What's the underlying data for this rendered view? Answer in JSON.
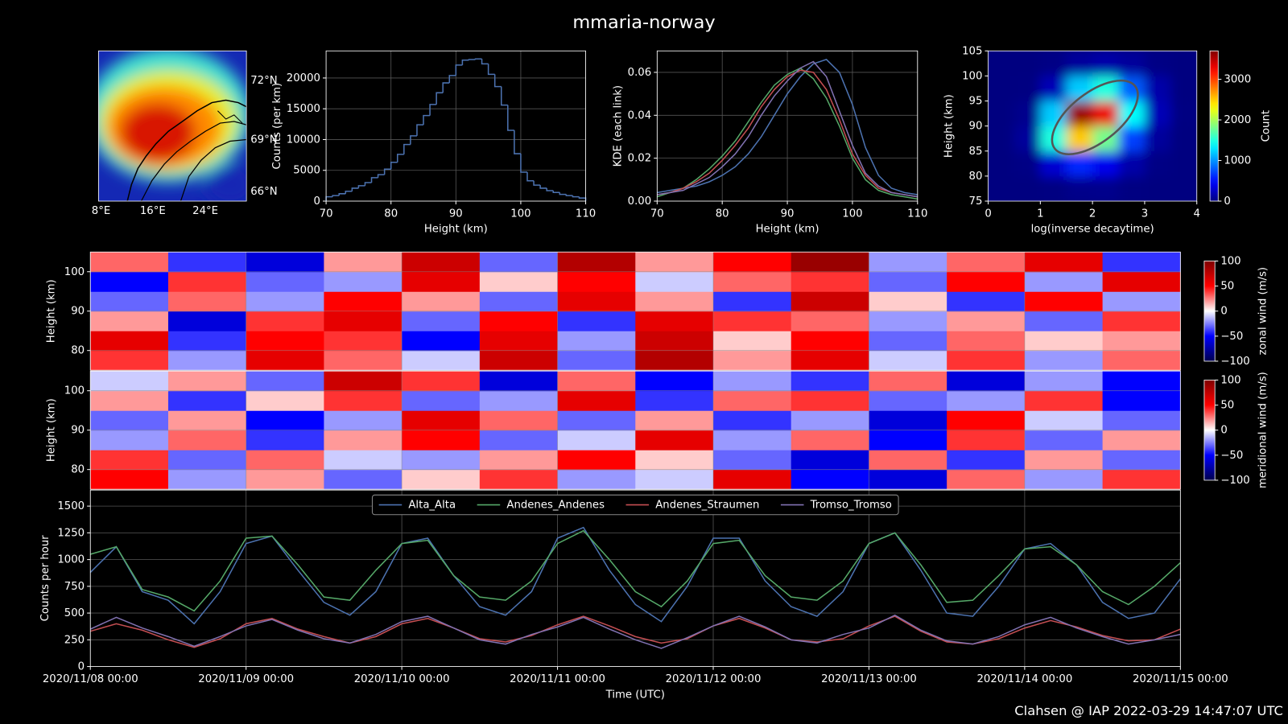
{
  "title": "mmaria-norway",
  "footer": "Clahsen @ IAP 2022-03-29 14:47:07 UTC",
  "chart_data": [
    {
      "type": "map",
      "lat_labels": [
        "72°N",
        "69°N",
        "66°N"
      ],
      "lon_labels": [
        "8°E",
        "16°E",
        "24°E"
      ]
    },
    {
      "type": "histogram",
      "color": "#4c72b0",
      "xlabel": "Height (km)",
      "ylabel": "Counts (per km)",
      "bins": [
        70,
        71,
        72,
        73,
        74,
        75,
        76,
        77,
        78,
        79,
        80,
        81,
        82,
        83,
        84,
        85,
        86,
        87,
        88,
        89,
        90,
        91,
        92,
        93,
        94,
        95,
        96,
        97,
        98,
        99,
        100,
        101,
        102,
        103,
        104,
        105,
        106,
        107,
        108,
        109,
        110
      ],
      "values": [
        700,
        900,
        1200,
        1600,
        2100,
        2500,
        3000,
        3800,
        4300,
        5200,
        6300,
        7600,
        9200,
        10600,
        12400,
        13900,
        15700,
        17600,
        19200,
        20400,
        22100,
        22900,
        23000,
        23100,
        22300,
        20600,
        18600,
        15600,
        11500,
        7700,
        4700,
        3300,
        2600,
        2100,
        1700,
        1400,
        1100,
        900,
        700,
        500
      ],
      "xlim": [
        70,
        110
      ],
      "xticks": [
        70,
        80,
        90,
        100,
        110
      ],
      "ylim": [
        0,
        24400
      ],
      "yticks": [
        0,
        5000,
        10000,
        15000,
        20000
      ],
      "grid": true
    },
    {
      "type": "line",
      "xlabel": "Height (km)",
      "ylabel": "KDE (each link)",
      "x": [
        70,
        72,
        74,
        76,
        78,
        80,
        82,
        84,
        86,
        88,
        90,
        92,
        94,
        96,
        98,
        100,
        102,
        104,
        106,
        108,
        110
      ],
      "series": [
        {
          "color": "#4c72b0",
          "values": [
            0.004,
            0.005,
            0.006,
            0.007,
            0.009,
            0.012,
            0.016,
            0.022,
            0.03,
            0.04,
            0.05,
            0.058,
            0.064,
            0.066,
            0.06,
            0.045,
            0.025,
            0.012,
            0.006,
            0.004,
            0.003
          ]
        },
        {
          "color": "#55a868",
          "values": [
            0.002,
            0.004,
            0.006,
            0.01,
            0.015,
            0.021,
            0.028,
            0.037,
            0.046,
            0.054,
            0.059,
            0.062,
            0.057,
            0.048,
            0.035,
            0.02,
            0.01,
            0.005,
            0.003,
            0.002,
            0.001
          ]
        },
        {
          "color": "#c44e52",
          "values": [
            0.003,
            0.004,
            0.006,
            0.009,
            0.013,
            0.019,
            0.026,
            0.034,
            0.044,
            0.052,
            0.058,
            0.061,
            0.06,
            0.052,
            0.038,
            0.022,
            0.012,
            0.006,
            0.004,
            0.003,
            0.002
          ]
        },
        {
          "color": "#8172b2",
          "values": [
            0.003,
            0.004,
            0.005,
            0.008,
            0.011,
            0.016,
            0.022,
            0.03,
            0.04,
            0.049,
            0.056,
            0.062,
            0.065,
            0.058,
            0.042,
            0.026,
            0.013,
            0.007,
            0.004,
            0.003,
            0.002
          ]
        }
      ],
      "xlim": [
        70,
        110
      ],
      "xticks": [
        70,
        80,
        90,
        100,
        110
      ],
      "ylim": [
        0,
        0.07
      ],
      "yticks": [
        {
          "value": 0,
          "label": "0.00"
        },
        {
          "value": 0.02,
          "label": "0.02"
        },
        {
          "value": 0.04,
          "label": "0.04"
        },
        {
          "value": 0.06,
          "label": "0.06"
        }
      ],
      "grid": true
    },
    {
      "type": "hist2d",
      "xlabel": "log(inverse decaytime)",
      "ylabel": "Height (km)",
      "colormap": "jet",
      "x": [
        0,
        0.5,
        1,
        1.5,
        2,
        2.5,
        3,
        3.5,
        4
      ],
      "y": [
        75,
        80,
        85,
        90,
        95,
        100,
        105
      ],
      "values": [
        [
          0,
          0,
          10,
          40,
          50,
          10,
          0,
          0
        ],
        [
          0,
          20,
          300,
          600,
          400,
          150,
          20,
          0
        ],
        [
          0,
          100,
          1500,
          2500,
          1800,
          700,
          100,
          0
        ],
        [
          0,
          50,
          1200,
          3600,
          3300,
          1400,
          200,
          10
        ],
        [
          0,
          10,
          200,
          1200,
          1500,
          800,
          150,
          0
        ],
        [
          0,
          0,
          20,
          100,
          150,
          100,
          20,
          0
        ]
      ],
      "xlim": [
        0,
        4
      ],
      "xticks": [
        0,
        1,
        2,
        3,
        4
      ],
      "ylim": [
        75,
        105
      ],
      "yticks": [
        75,
        80,
        85,
        90,
        95,
        100,
        105
      ],
      "clim": [
        0,
        3700
      ],
      "cticks": [
        0,
        1000,
        2000,
        3000
      ],
      "clabel": "Count"
    },
    {
      "type": "heatmap",
      "ylabel": "Height (km)",
      "colormap": "seismic",
      "x": [
        "2020/11/08 00:00",
        "2020/11/08 12:00",
        "2020/11/09 00:00",
        "2020/11/09 12:00",
        "2020/11/10 00:00",
        "2020/11/10 12:00",
        "2020/11/11 00:00",
        "2020/11/11 12:00",
        "2020/11/12 00:00",
        "2020/11/12 12:00",
        "2020/11/13 00:00",
        "2020/11/13 12:00",
        "2020/11/14 00:00",
        "2020/11/14 12:00",
        "2020/11/15 00:00"
      ],
      "y": [
        75,
        80,
        85,
        90,
        95,
        100,
        105
      ],
      "values": [
        [
          40,
          -20,
          60,
          30,
          -10,
          70,
          -30,
          80,
          20,
          60,
          -10,
          40,
          -20,
          30
        ],
        [
          60,
          -40,
          50,
          40,
          -50,
          60,
          -20,
          70,
          10,
          50,
          -30,
          30,
          10,
          20
        ],
        [
          20,
          -60,
          40,
          60,
          -30,
          50,
          -40,
          60,
          40,
          30,
          -20,
          20,
          -30,
          40
        ],
        [
          -30,
          30,
          -20,
          50,
          20,
          -30,
          60,
          20,
          -40,
          70,
          10,
          -40,
          50,
          -20
        ],
        [
          -50,
          40,
          -30,
          -20,
          60,
          10,
          50,
          -10,
          30,
          40,
          -30,
          50,
          -20,
          60
        ],
        [
          30,
          -40,
          -60,
          20,
          70,
          -30,
          80,
          20,
          50,
          90,
          -20,
          30,
          60,
          -40
        ]
      ],
      "xlim": [
        "2020/11/08 00:00",
        "2020/11/15 00:00"
      ],
      "ylim": [
        75,
        105
      ],
      "yticks": [
        80,
        90,
        100
      ],
      "clim": [
        -100,
        100
      ],
      "cticks": [
        {
          "value": -100,
          "label": "−100"
        },
        {
          "value": -50,
          "label": "−50"
        },
        0,
        50,
        100
      ],
      "clabel": "zonal wind (m/s)"
    },
    {
      "type": "heatmap",
      "ylabel": "Height (km)",
      "colormap": "seismic",
      "x": [
        "2020/11/08 00:00",
        "2020/11/08 12:00",
        "2020/11/09 00:00",
        "2020/11/09 12:00",
        "2020/11/10 00:00",
        "2020/11/10 12:00",
        "2020/11/11 00:00",
        "2020/11/11 12:00",
        "2020/11/12 00:00",
        "2020/11/12 12:00",
        "2020/11/13 00:00",
        "2020/11/13 12:00",
        "2020/11/14 00:00",
        "2020/11/14 12:00",
        "2020/11/15 00:00"
      ],
      "y": [
        75,
        80,
        85,
        90,
        95,
        100,
        105
      ],
      "values": [
        [
          50,
          -20,
          20,
          -30,
          10,
          40,
          -20,
          -10,
          60,
          -50,
          -60,
          30,
          -20,
          40
        ],
        [
          40,
          -30,
          30,
          -10,
          -20,
          20,
          50,
          10,
          -30,
          -60,
          30,
          -40,
          20,
          -30
        ],
        [
          -20,
          30,
          -40,
          20,
          50,
          -30,
          -10,
          60,
          -20,
          30,
          -50,
          40,
          -30,
          20
        ],
        [
          -30,
          20,
          -50,
          -20,
          60,
          30,
          -30,
          20,
          -40,
          -20,
          -60,
          50,
          -10,
          -30
        ],
        [
          20,
          -40,
          10,
          40,
          -30,
          -20,
          60,
          -40,
          30,
          40,
          -30,
          -20,
          40,
          -50
        ],
        [
          -10,
          20,
          -30,
          70,
          40,
          -60,
          30,
          -50,
          -20,
          -40,
          30,
          -60,
          -20,
          -50
        ]
      ],
      "xlim": [
        "2020/11/08 00:00",
        "2020/11/15 00:00"
      ],
      "ylim": [
        75,
        105
      ],
      "yticks": [
        80,
        90,
        100
      ],
      "clim": [
        -100,
        100
      ],
      "cticks": [
        {
          "value": -100,
          "label": "−100"
        },
        {
          "value": -50,
          "label": "−50"
        },
        0,
        50,
        100
      ],
      "clabel": "meridional wind (m/s)"
    },
    {
      "type": "line",
      "xlabel": "Time (UTC)",
      "ylabel": "Counts per hour",
      "legend": "upper center",
      "x": [
        "2020/11/08 00:00",
        "2020/11/08 04:00",
        "2020/11/08 08:00",
        "2020/11/08 12:00",
        "2020/11/08 16:00",
        "2020/11/08 20:00",
        "2020/11/09 00:00",
        "2020/11/09 04:00",
        "2020/11/09 08:00",
        "2020/11/09 12:00",
        "2020/11/09 16:00",
        "2020/11/09 20:00",
        "2020/11/10 00:00",
        "2020/11/10 04:00",
        "2020/11/10 08:00",
        "2020/11/10 12:00",
        "2020/11/10 16:00",
        "2020/11/10 20:00",
        "2020/11/11 00:00",
        "2020/11/11 04:00",
        "2020/11/11 08:00",
        "2020/11/11 12:00",
        "2020/11/11 16:00",
        "2020/11/11 20:00",
        "2020/11/12 00:00",
        "2020/11/12 04:00",
        "2020/11/12 08:00",
        "2020/11/12 12:00",
        "2020/11/12 16:00",
        "2020/11/12 20:00",
        "2020/11/13 00:00",
        "2020/11/13 04:00",
        "2020/11/13 08:00",
        "2020/11/13 12:00",
        "2020/11/13 16:00",
        "2020/11/13 20:00",
        "2020/11/14 00:00",
        "2020/11/14 04:00",
        "2020/11/14 08:00",
        "2020/11/14 12:00",
        "2020/11/14 16:00",
        "2020/11/14 20:00",
        "2020/11/15 00:00"
      ],
      "series": [
        {
          "name": "Alta_Alta",
          "color": "#4c72b0",
          "values": [
            880,
            1120,
            700,
            620,
            400,
            700,
            1150,
            1220,
            900,
            600,
            480,
            700,
            1150,
            1200,
            850,
            560,
            480,
            700,
            1200,
            1300,
            900,
            580,
            420,
            750,
            1200,
            1200,
            800,
            560,
            470,
            700,
            1150,
            1250,
            900,
            500,
            470,
            750,
            1100,
            1150,
            950,
            600,
            450,
            500,
            820
          ]
        },
        {
          "name": "Andenes_Andenes",
          "color": "#55a868",
          "values": [
            1050,
            1120,
            720,
            650,
            520,
            800,
            1200,
            1220,
            950,
            650,
            620,
            900,
            1150,
            1180,
            850,
            650,
            620,
            800,
            1150,
            1270,
            1000,
            700,
            560,
            800,
            1150,
            1180,
            850,
            650,
            620,
            800,
            1150,
            1250,
            950,
            600,
            620,
            850,
            1100,
            1120,
            950,
            700,
            580,
            750,
            970
          ]
        },
        {
          "name": "Andenes_Straumen",
          "color": "#c44e52",
          "values": [
            330,
            400,
            340,
            250,
            180,
            260,
            400,
            450,
            350,
            280,
            220,
            280,
            400,
            450,
            360,
            260,
            230,
            290,
            390,
            470,
            380,
            280,
            220,
            260,
            380,
            450,
            360,
            250,
            230,
            260,
            380,
            470,
            330,
            230,
            210,
            260,
            360,
            430,
            370,
            290,
            240,
            250,
            350
          ]
        },
        {
          "name": "Tromso_Tromso",
          "color": "#8172b2",
          "values": [
            350,
            460,
            360,
            280,
            190,
            280,
            380,
            440,
            340,
            260,
            220,
            300,
            420,
            470,
            360,
            250,
            210,
            300,
            370,
            460,
            350,
            250,
            170,
            270,
            380,
            470,
            370,
            250,
            220,
            300,
            360,
            480,
            340,
            240,
            210,
            280,
            390,
            460,
            360,
            280,
            210,
            250,
            300
          ]
        }
      ],
      "xlim": [
        "2020/11/08 00:00",
        "2020/11/15 00:00"
      ],
      "xticks": [
        "2020/11/08 00:00",
        "2020/11/09 00:00",
        "2020/11/10 00:00",
        "2020/11/11 00:00",
        "2020/11/12 00:00",
        "2020/11/13 00:00",
        "2020/11/14 00:00",
        "2020/11/15 00:00"
      ],
      "ylim": [
        0,
        1650
      ],
      "yticks": [
        0,
        250,
        500,
        750,
        1000,
        1250,
        1500
      ],
      "grid": true
    }
  ]
}
